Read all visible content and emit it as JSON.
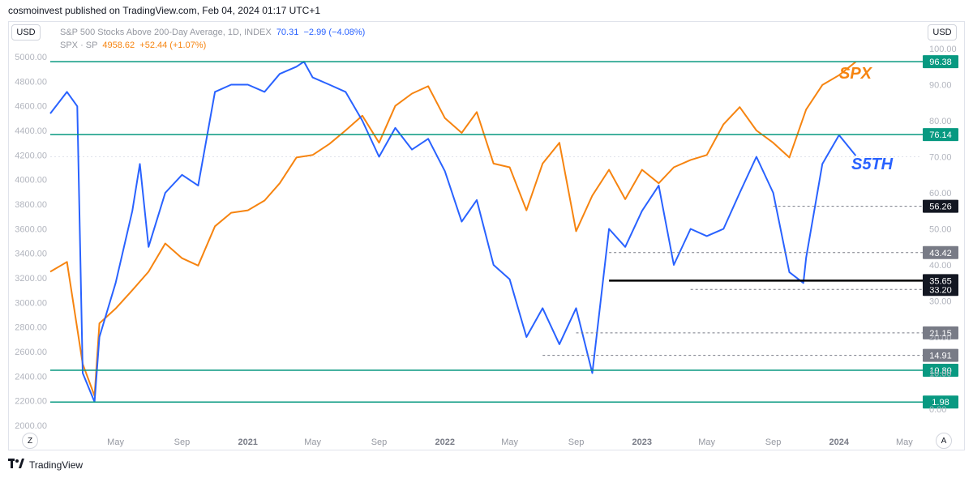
{
  "header": {
    "published": "cosmoinvest published on TradingView.com, Feb 04, 2024 01:17 UTC+1"
  },
  "currency_left": "USD",
  "currency_right": "USD",
  "legend": {
    "s5th_name": "S&P 500 Stocks Above 200-Day Average, 1D, INDEX",
    "s5th_last": "70.31",
    "s5th_change": "−2.99 (−4.08%)",
    "spx_name": "SPX · SP",
    "spx_last": "4958.62",
    "spx_change": "+52.44 (+1.07%)"
  },
  "annotations": {
    "spx": "SPX",
    "s5th": "S5TH"
  },
  "corner_left": "Z",
  "corner_right": "A",
  "footer": {
    "brand": "TradingView"
  },
  "colors": {
    "s5th": "#2962ff",
    "spx": "#f68410",
    "hline": "#089981",
    "support": "#000000",
    "marker_grey": "#787b86"
  },
  "chart_data": {
    "type": "line",
    "left_axis": {
      "range": [
        2000,
        5000
      ],
      "ticks": [
        "5000.00",
        "4800.00",
        "4600.00",
        "4400.00",
        "4200.00",
        "4000.00",
        "3800.00",
        "3600.00",
        "3400.00",
        "3200.00",
        "3000.00",
        "2800.00",
        "2600.00",
        "2400.00",
        "2200.00",
        "2000.00"
      ]
    },
    "right_axis": {
      "range": [
        0,
        100
      ],
      "ticks": [
        "100.00",
        "90.00",
        "80.00",
        "70.00",
        "60.00",
        "50.00",
        "40.00",
        "30.00",
        "20.00",
        "10.00",
        "0.00"
      ]
    },
    "x_ticks": [
      "May",
      "Sep",
      "2021",
      "May",
      "Sep",
      "2022",
      "May",
      "Sep",
      "2023",
      "May",
      "Sep",
      "2024",
      "May"
    ],
    "x_bold": [
      "2021",
      "2022",
      "2023",
      "2024"
    ],
    "horizontal_lines": [
      {
        "value": 96.38,
        "label": "96.38",
        "style": "solid"
      },
      {
        "value": 76.14,
        "label": "76.14",
        "style": "solid"
      },
      {
        "value": 10.8,
        "label": "10.80",
        "style": "solid"
      },
      {
        "value": 1.98,
        "label": "1.98",
        "style": "solid"
      }
    ],
    "support_line": {
      "value": 35.65,
      "label": "35.65",
      "from": "2022-11"
    },
    "dotted_levels": [
      {
        "value": 56.26,
        "label": "56.26",
        "from": "2023-09",
        "tag": "dark"
      },
      {
        "value": 43.42,
        "label": "43.42",
        "from": "2022-11",
        "tag": "grey"
      },
      {
        "value": 33.2,
        "label": "33.20",
        "from": "2023-04",
        "tag": "dark"
      },
      {
        "value": 21.15,
        "label": "21.15",
        "from": "2022-09",
        "tag": "grey"
      },
      {
        "value": 14.91,
        "label": "14.91",
        "from": "2022-07",
        "tag": "grey"
      }
    ],
    "series": [
      {
        "name": "SPX · SP",
        "axis": "left",
        "x": [
          "2020-01",
          "2020-02",
          "2020-03",
          "2020-03-23",
          "2020-04",
          "2020-05",
          "2020-06",
          "2020-07",
          "2020-08",
          "2020-09",
          "2020-10",
          "2020-11",
          "2020-12",
          "2021-01",
          "2021-02",
          "2021-03",
          "2021-04",
          "2021-05",
          "2021-06",
          "2021-07",
          "2021-08",
          "2021-09",
          "2021-10",
          "2021-11",
          "2021-12",
          "2022-01",
          "2022-02",
          "2022-03",
          "2022-04",
          "2022-05",
          "2022-06",
          "2022-07",
          "2022-08",
          "2022-09",
          "2022-10",
          "2022-11",
          "2022-12",
          "2023-01",
          "2023-02",
          "2023-03",
          "2023-04",
          "2023-05",
          "2023-06",
          "2023-07",
          "2023-08",
          "2023-09",
          "2023-10",
          "2023-11",
          "2023-12",
          "2024-01",
          "2024-02"
        ],
        "values": [
          3250,
          3330,
          2500,
          2240,
          2830,
          2950,
          3100,
          3250,
          3480,
          3360,
          3300,
          3620,
          3730,
          3750,
          3830,
          3970,
          4180,
          4200,
          4290,
          4400,
          4520,
          4300,
          4600,
          4700,
          4760,
          4500,
          4380,
          4550,
          4130,
          4100,
          3750,
          4130,
          4300,
          3580,
          3870,
          4080,
          3840,
          4080,
          3970,
          4100,
          4160,
          4200,
          4450,
          4590,
          4400,
          4300,
          4180,
          4570,
          4770,
          4850,
          4958.62
        ]
      },
      {
        "name": "S&P 500 Stocks Above 200-Day Average",
        "axis": "right",
        "x": [
          "2020-01",
          "2020-02",
          "2020-02-20",
          "2020-03",
          "2020-03-23",
          "2020-04",
          "2020-05",
          "2020-06",
          "2020-06-15",
          "2020-07",
          "2020-08",
          "2020-09",
          "2020-10",
          "2020-11",
          "2020-12",
          "2021-01",
          "2021-02",
          "2021-03",
          "2021-04",
          "2021-04-15",
          "2021-05",
          "2021-06",
          "2021-07",
          "2021-08",
          "2021-09",
          "2021-10",
          "2021-11",
          "2021-12",
          "2022-01",
          "2022-02",
          "2022-03",
          "2022-04",
          "2022-05",
          "2022-06",
          "2022-07",
          "2022-08",
          "2022-09",
          "2022-10",
          "2022-11",
          "2022-12",
          "2023-01",
          "2023-02",
          "2023-03",
          "2023-04",
          "2023-05",
          "2023-06",
          "2023-07",
          "2023-08",
          "2023-09",
          "2023-10",
          "2023-10-27",
          "2023-11",
          "2023-12",
          "2024-01",
          "2024-02"
        ],
        "values": [
          82,
          88,
          84,
          10,
          2,
          20,
          35,
          55,
          68,
          45,
          60,
          65,
          62,
          88,
          90,
          90,
          88,
          93,
          95,
          96.38,
          92,
          90,
          88,
          80,
          70,
          78,
          72,
          75,
          66,
          52,
          58,
          40,
          36,
          20,
          28,
          18,
          28,
          10,
          50,
          45,
          55,
          62,
          40,
          50,
          48,
          50,
          60,
          70,
          60,
          38,
          35,
          42,
          68,
          76,
          70.31
        ]
      }
    ]
  }
}
